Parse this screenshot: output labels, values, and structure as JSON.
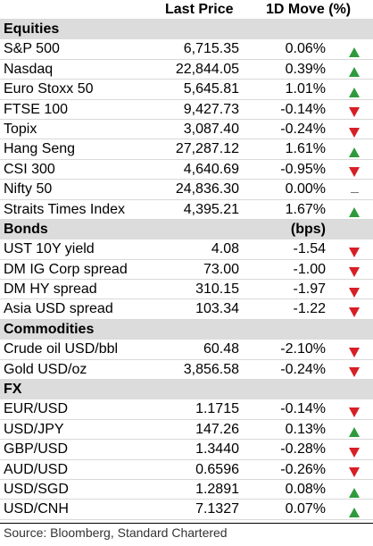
{
  "header": {
    "price_label": "Last Price",
    "move_label": "1D Move (%)"
  },
  "sections": [
    {
      "title": "Equities",
      "unit": "",
      "rows": [
        {
          "name": "S&P 500",
          "price": "6,715.35",
          "move": "0.06%",
          "dir": "up"
        },
        {
          "name": "Nasdaq",
          "price": "22,844.05",
          "move": "0.39%",
          "dir": "up"
        },
        {
          "name": "Euro Stoxx 50",
          "price": "5,645.81",
          "move": "1.01%",
          "dir": "up"
        },
        {
          "name": "FTSE 100",
          "price": "9,427.73",
          "move": "-0.14%",
          "dir": "down"
        },
        {
          "name": "Topix",
          "price": "3,087.40",
          "move": "-0.24%",
          "dir": "down"
        },
        {
          "name": "Hang Seng",
          "price": "27,287.12",
          "move": "1.61%",
          "dir": "up"
        },
        {
          "name": "CSI 300",
          "price": "4,640.69",
          "move": "-0.95%",
          "dir": "down"
        },
        {
          "name": "Nifty 50",
          "price": "24,836.30",
          "move": "0.00%",
          "dir": "flat"
        },
        {
          "name": "Straits Times Index",
          "price": "4,395.21",
          "move": "1.67%",
          "dir": "up"
        }
      ]
    },
    {
      "title": "Bonds",
      "unit": "(bps)",
      "rows": [
        {
          "name": "UST 10Y yield",
          "price": "4.08",
          "move": "-1.54",
          "dir": "down"
        },
        {
          "name": "DM IG Corp spread",
          "price": "73.00",
          "move": "-1.00",
          "dir": "down"
        },
        {
          "name": "DM HY spread",
          "price": "310.15",
          "move": "-1.97",
          "dir": "down"
        },
        {
          "name": "Asia USD spread",
          "price": "103.34",
          "move": "-1.22",
          "dir": "down"
        }
      ]
    },
    {
      "title": "Commodities",
      "unit": "",
      "rows": [
        {
          "name": "Crude oil USD/bbl",
          "price": "60.48",
          "move": "-2.10%",
          "dir": "down"
        },
        {
          "name": "Gold USD/oz",
          "price": "3,856.58",
          "move": "-0.24%",
          "dir": "down"
        }
      ]
    },
    {
      "title": "FX",
      "unit": "",
      "rows": [
        {
          "name": "EUR/USD",
          "price": "1.1715",
          "move": "-0.14%",
          "dir": "down"
        },
        {
          "name": "USD/JPY",
          "price": "147.26",
          "move": "0.13%",
          "dir": "up"
        },
        {
          "name": "GBP/USD",
          "price": "1.3440",
          "move": "-0.28%",
          "dir": "down"
        },
        {
          "name": "AUD/USD",
          "price": "0.6596",
          "move": "-0.26%",
          "dir": "down"
        },
        {
          "name": "USD/SGD",
          "price": "1.2891",
          "move": "0.08%",
          "dir": "up"
        },
        {
          "name": "USD/CNH",
          "price": "7.1327",
          "move": "0.07%",
          "dir": "up"
        }
      ]
    }
  ],
  "source": "Source: Bloomberg, Standard Chartered",
  "colors": {
    "up": "#2e9a3c",
    "down": "#d61f26",
    "section_bg": "#dcdcdc"
  }
}
